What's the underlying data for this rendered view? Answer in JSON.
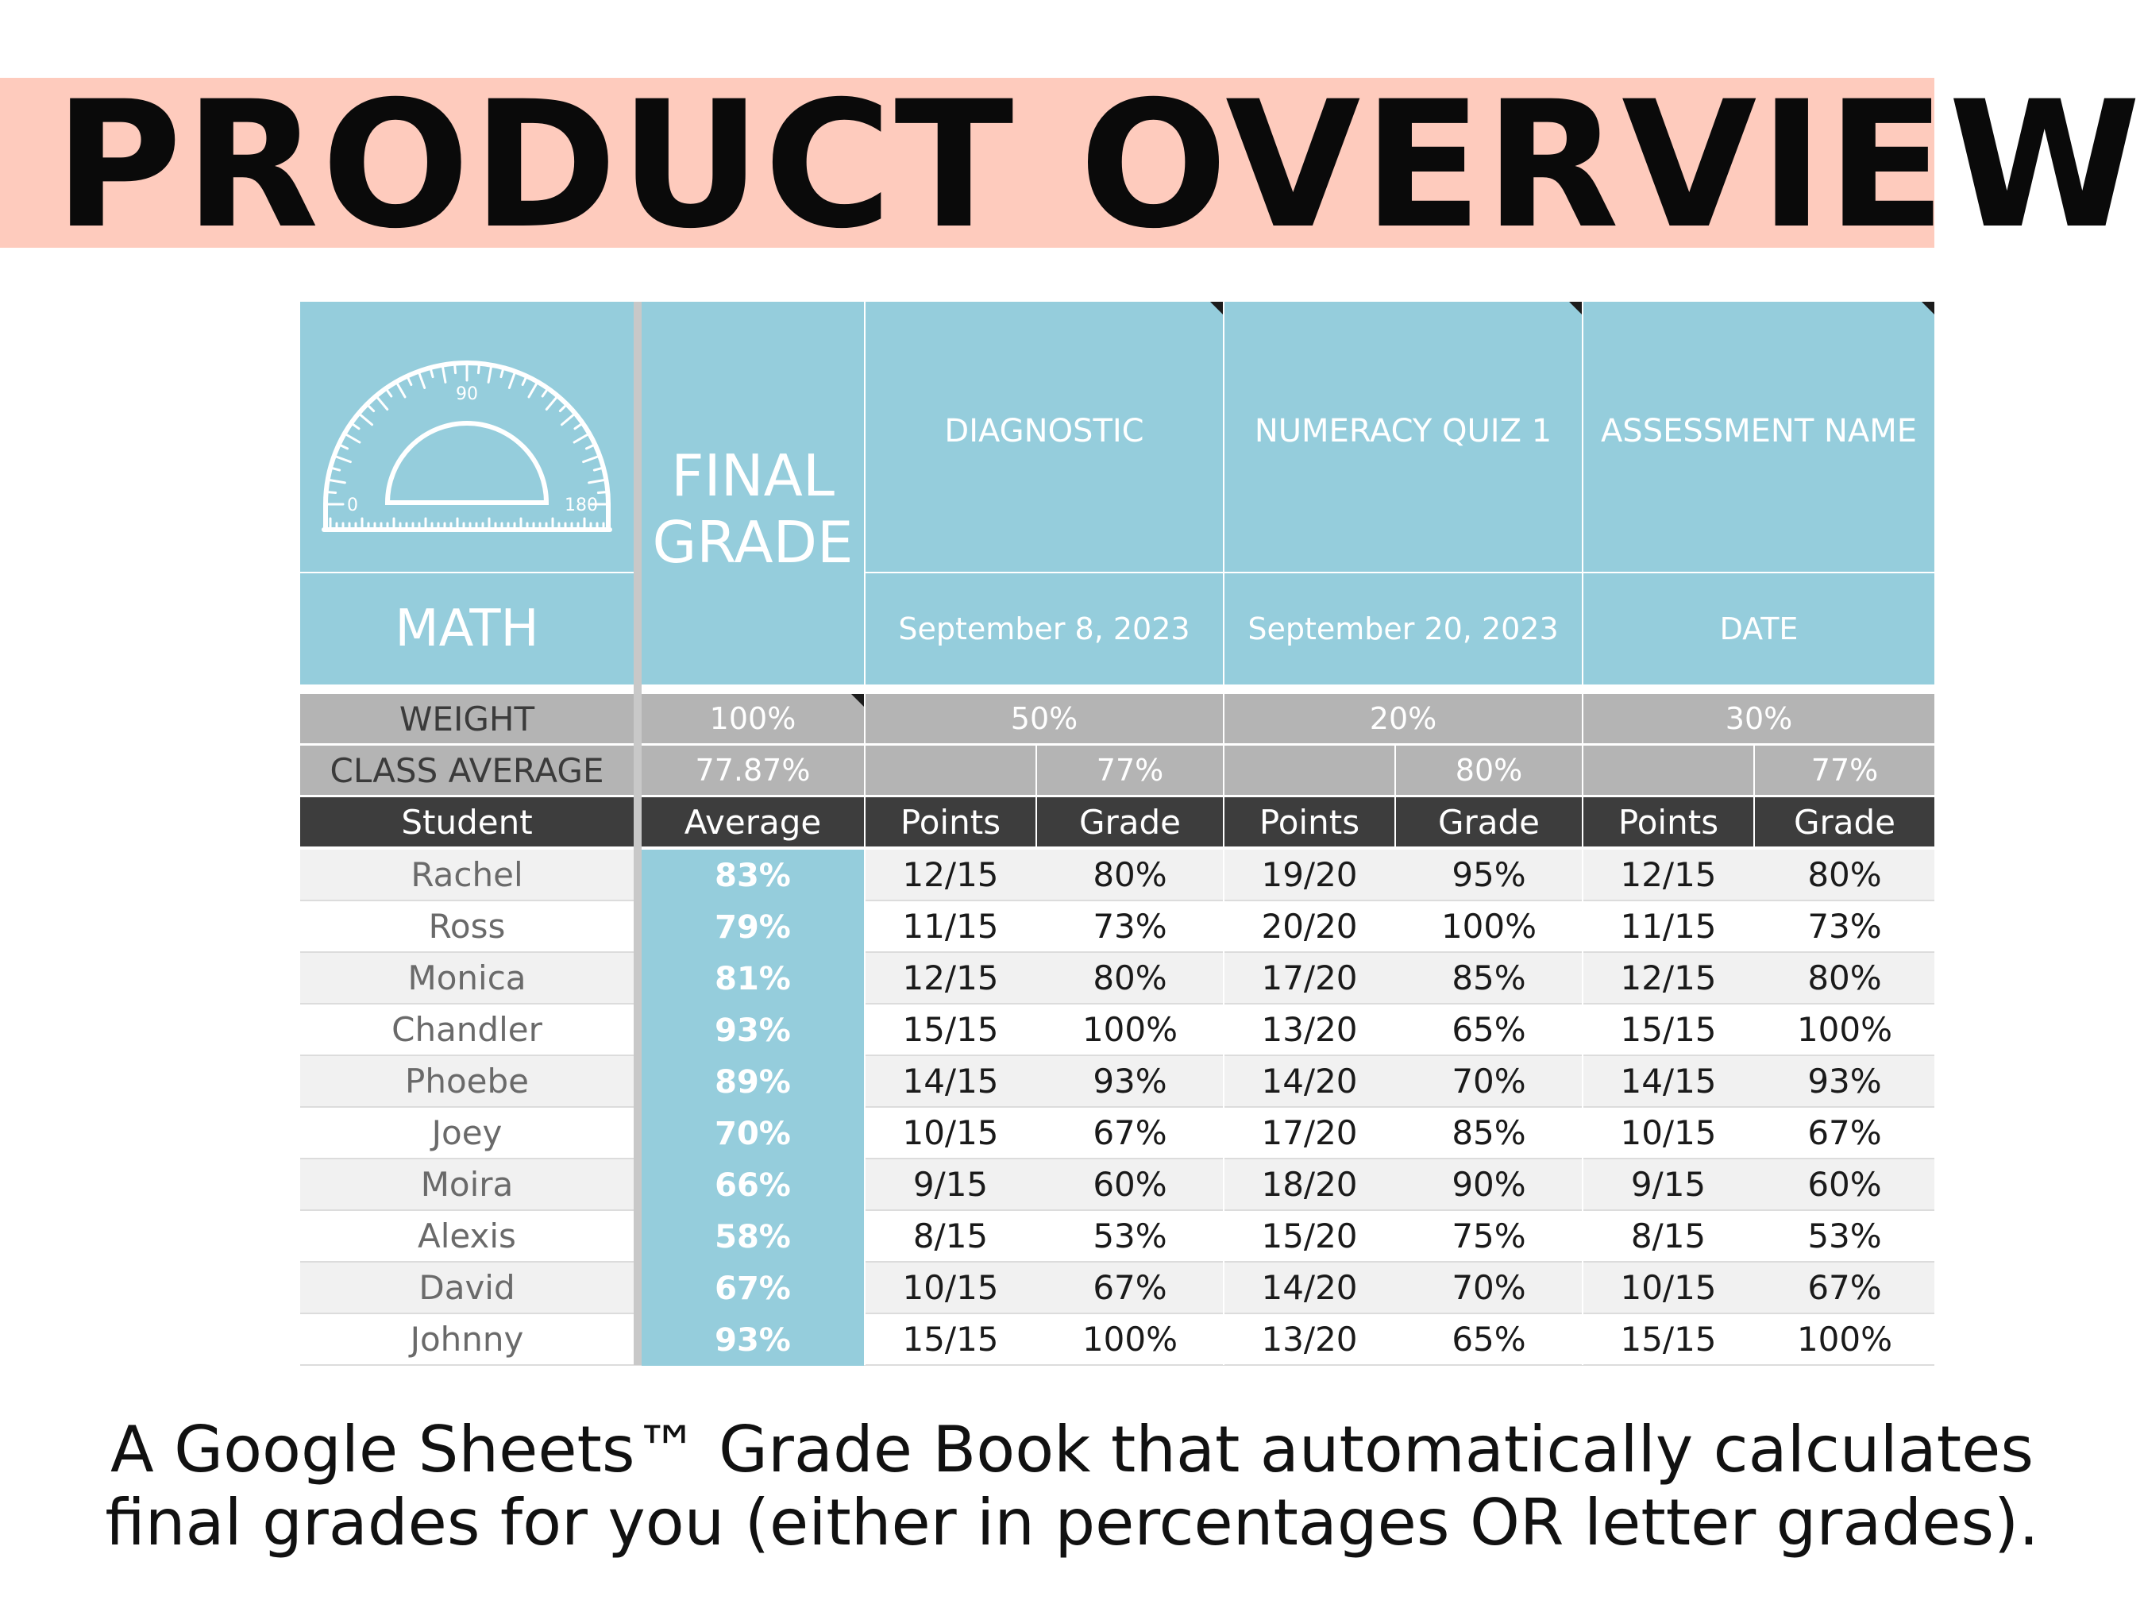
{
  "page": {
    "title": "PRODUCT OVERVIEW",
    "caption_line1": "A Google Sheets™ Grade Book that automatically calculates",
    "caption_line2": "final grades for you (either in percentages OR letter grades)."
  },
  "colors": {
    "banner": "#fecbbd",
    "header_blue": "#95cddc",
    "weight_grey": "#b4b4b4",
    "column_header_dark": "#3d3d3d"
  },
  "gradebook": {
    "logo_icon": "protractor-icon",
    "protractor_labels": {
      "top": "90",
      "left": "0",
      "right": "180"
    },
    "subject": "MATH",
    "final_grade_label_1": "FINAL",
    "final_grade_label_2": "GRADE",
    "assessments": [
      {
        "name": "DIAGNOSTIC",
        "date": "September 8, 2023",
        "weight": "50%",
        "class_average": "77%"
      },
      {
        "name": "NUMERACY QUIZ 1",
        "date": "September 20, 2023",
        "weight": "20%",
        "class_average": "80%"
      },
      {
        "name": "ASSESSMENT NAME",
        "date": "DATE",
        "weight": "30%",
        "class_average": "77%"
      }
    ],
    "weight_label": "WEIGHT",
    "final_weight": "100%",
    "class_average_label": "CLASS AVERAGE",
    "final_class_average": "77.87%",
    "columns": {
      "student": "Student",
      "average": "Average",
      "points": "Points",
      "grade": "Grade"
    },
    "students": [
      {
        "name": "Rachel",
        "average": "83%",
        "scores": [
          [
            "12/15",
            "80%"
          ],
          [
            "19/20",
            "95%"
          ],
          [
            "12/15",
            "80%"
          ]
        ]
      },
      {
        "name": "Ross",
        "average": "79%",
        "scores": [
          [
            "11/15",
            "73%"
          ],
          [
            "20/20",
            "100%"
          ],
          [
            "11/15",
            "73%"
          ]
        ]
      },
      {
        "name": "Monica",
        "average": "81%",
        "scores": [
          [
            "12/15",
            "80%"
          ],
          [
            "17/20",
            "85%"
          ],
          [
            "12/15",
            "80%"
          ]
        ]
      },
      {
        "name": "Chandler",
        "average": "93%",
        "scores": [
          [
            "15/15",
            "100%"
          ],
          [
            "13/20",
            "65%"
          ],
          [
            "15/15",
            "100%"
          ]
        ]
      },
      {
        "name": "Phoebe",
        "average": "89%",
        "scores": [
          [
            "14/15",
            "93%"
          ],
          [
            "14/20",
            "70%"
          ],
          [
            "14/15",
            "93%"
          ]
        ]
      },
      {
        "name": "Joey",
        "average": "70%",
        "scores": [
          [
            "10/15",
            "67%"
          ],
          [
            "17/20",
            "85%"
          ],
          [
            "10/15",
            "67%"
          ]
        ]
      },
      {
        "name": "Moira",
        "average": "66%",
        "scores": [
          [
            "9/15",
            "60%"
          ],
          [
            "18/20",
            "90%"
          ],
          [
            "9/15",
            "60%"
          ]
        ]
      },
      {
        "name": "Alexis",
        "average": "58%",
        "scores": [
          [
            "8/15",
            "53%"
          ],
          [
            "15/20",
            "75%"
          ],
          [
            "8/15",
            "53%"
          ]
        ]
      },
      {
        "name": "David",
        "average": "67%",
        "scores": [
          [
            "10/15",
            "67%"
          ],
          [
            "14/20",
            "70%"
          ],
          [
            "10/15",
            "67%"
          ]
        ]
      },
      {
        "name": "Johnny",
        "average": "93%",
        "scores": [
          [
            "15/15",
            "100%"
          ],
          [
            "13/20",
            "65%"
          ],
          [
            "15/15",
            "100%"
          ]
        ]
      }
    ]
  }
}
